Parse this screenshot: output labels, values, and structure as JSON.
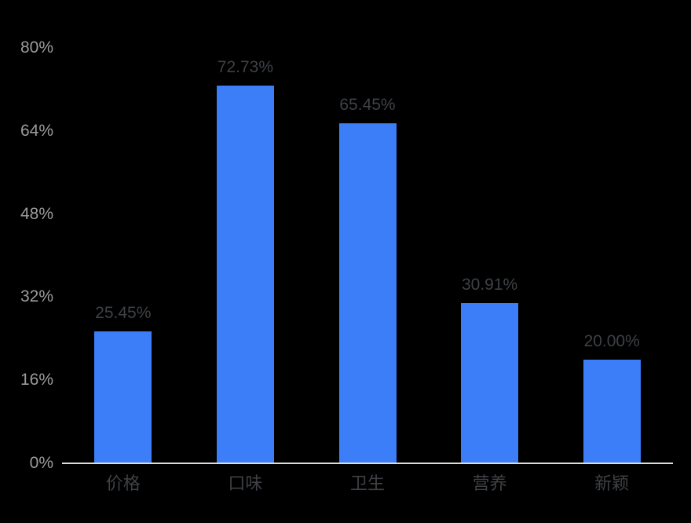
{
  "chart_data": {
    "type": "bar",
    "categories": [
      "价格",
      "口味",
      "卫生",
      "营养",
      "新颖"
    ],
    "values": [
      25.45,
      72.73,
      65.45,
      30.91,
      20.0
    ],
    "value_labels": [
      "25.45%",
      "72.73%",
      "65.45%",
      "30.91%",
      "20.00%"
    ],
    "title": "",
    "xlabel": "",
    "ylabel": "",
    "ylim": [
      0,
      80
    ],
    "yticks": [
      0,
      16,
      32,
      48,
      64,
      80
    ],
    "ytick_labels": [
      "0%",
      "16%",
      "32%",
      "48%",
      "64%",
      "80%"
    ],
    "grid": false,
    "legend": false,
    "colors": {
      "bar": "#3B7EF8",
      "background": "#000000",
      "value_label": "#3E4145",
      "category_label": "#3E4145",
      "tick_label": "#9B9B9B",
      "axis_line": "#DEDEDC"
    }
  }
}
